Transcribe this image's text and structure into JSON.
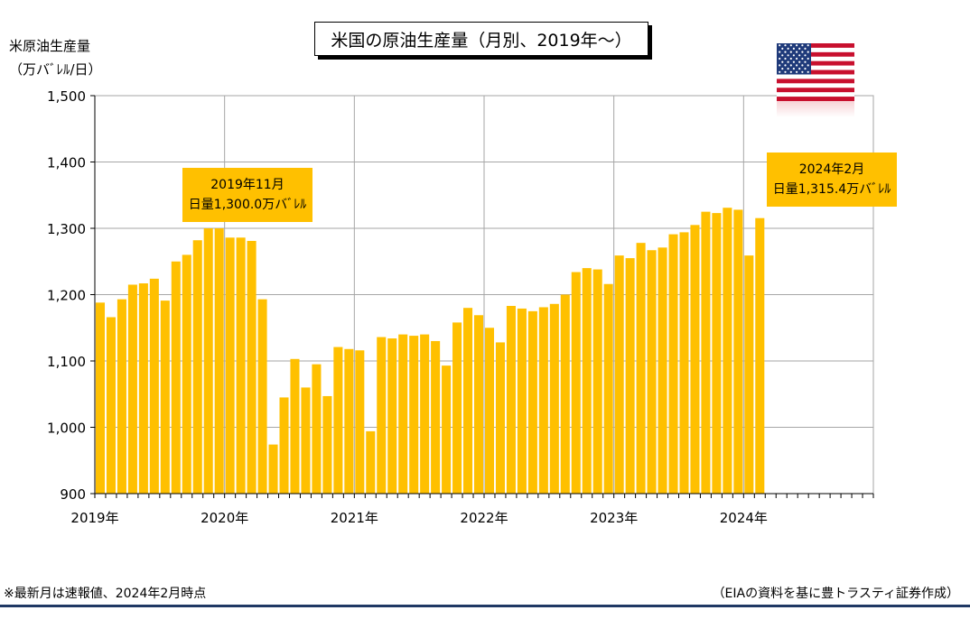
{
  "title": "米国の原油生産量（月別、2019年～）",
  "ylabel_line1": "米原油生産量",
  "ylabel_line2": "（万バﾞﾚﾙ/日）",
  "callouts": [
    {
      "line1": "2019年11月",
      "line2": "日量1,300.0万バﾞﾚﾙ"
    },
    {
      "line1": "2024年2月",
      "line2": "日量1,315.4万バﾞﾚﾙ"
    }
  ],
  "footnote": "※最新月は速報値、2024年2月時点",
  "source": "（EIAの資料を基に豊トラスティ証券作成）",
  "colors": {
    "bar": "#ffc000",
    "grid": "#a6a6a6",
    "rule": "#1f3864"
  },
  "flag_icon": "us-flag-icon",
  "chart_data": {
    "type": "bar",
    "title": "米国の原油生産量（月別、2019年～）",
    "ylabel": "米原油生産量（万バﾞﾚﾙ/日）",
    "ylim": [
      900,
      1500
    ],
    "yticks": [
      900,
      1000,
      1100,
      1200,
      1300,
      1400,
      1500
    ],
    "ytick_labels": [
      "900",
      "1,000",
      "1,100",
      "1,200",
      "1,300",
      "1,400",
      "1,500"
    ],
    "xtick_labels": [
      "2019年",
      "2020年",
      "2021年",
      "2022年",
      "2023年",
      "2024年"
    ],
    "grid": true,
    "categories": [
      "2019-01",
      "2019-02",
      "2019-03",
      "2019-04",
      "2019-05",
      "2019-06",
      "2019-07",
      "2019-08",
      "2019-09",
      "2019-10",
      "2019-11",
      "2019-12",
      "2020-01",
      "2020-02",
      "2020-03",
      "2020-04",
      "2020-05",
      "2020-06",
      "2020-07",
      "2020-08",
      "2020-09",
      "2020-10",
      "2020-11",
      "2020-12",
      "2021-01",
      "2021-02",
      "2021-03",
      "2021-04",
      "2021-05",
      "2021-06",
      "2021-07",
      "2021-08",
      "2021-09",
      "2021-10",
      "2021-11",
      "2021-12",
      "2022-01",
      "2022-02",
      "2022-03",
      "2022-04",
      "2022-05",
      "2022-06",
      "2022-07",
      "2022-08",
      "2022-09",
      "2022-10",
      "2022-11",
      "2022-12",
      "2023-01",
      "2023-02",
      "2023-03",
      "2023-04",
      "2023-05",
      "2023-06",
      "2023-07",
      "2023-08",
      "2023-09",
      "2023-10",
      "2023-11",
      "2023-12",
      "2024-01",
      "2024-02"
    ],
    "values": [
      1188,
      1166,
      1193,
      1215,
      1217,
      1224,
      1191,
      1250,
      1260,
      1282,
      1300,
      1300,
      1286,
      1286,
      1281,
      1193,
      974,
      1045,
      1103,
      1060,
      1095,
      1047,
      1121,
      1118,
      1116,
      994,
      1136,
      1134,
      1140,
      1138,
      1140,
      1130,
      1093,
      1158,
      1180,
      1169,
      1150,
      1128,
      1183,
      1179,
      1175,
      1181,
      1186,
      1200,
      1234,
      1240,
      1238,
      1216,
      1259,
      1255,
      1278,
      1267,
      1271,
      1291,
      1294,
      1305,
      1325,
      1323,
      1331,
      1328,
      1259,
      1315.4
    ],
    "axis_months_total": 72
  }
}
